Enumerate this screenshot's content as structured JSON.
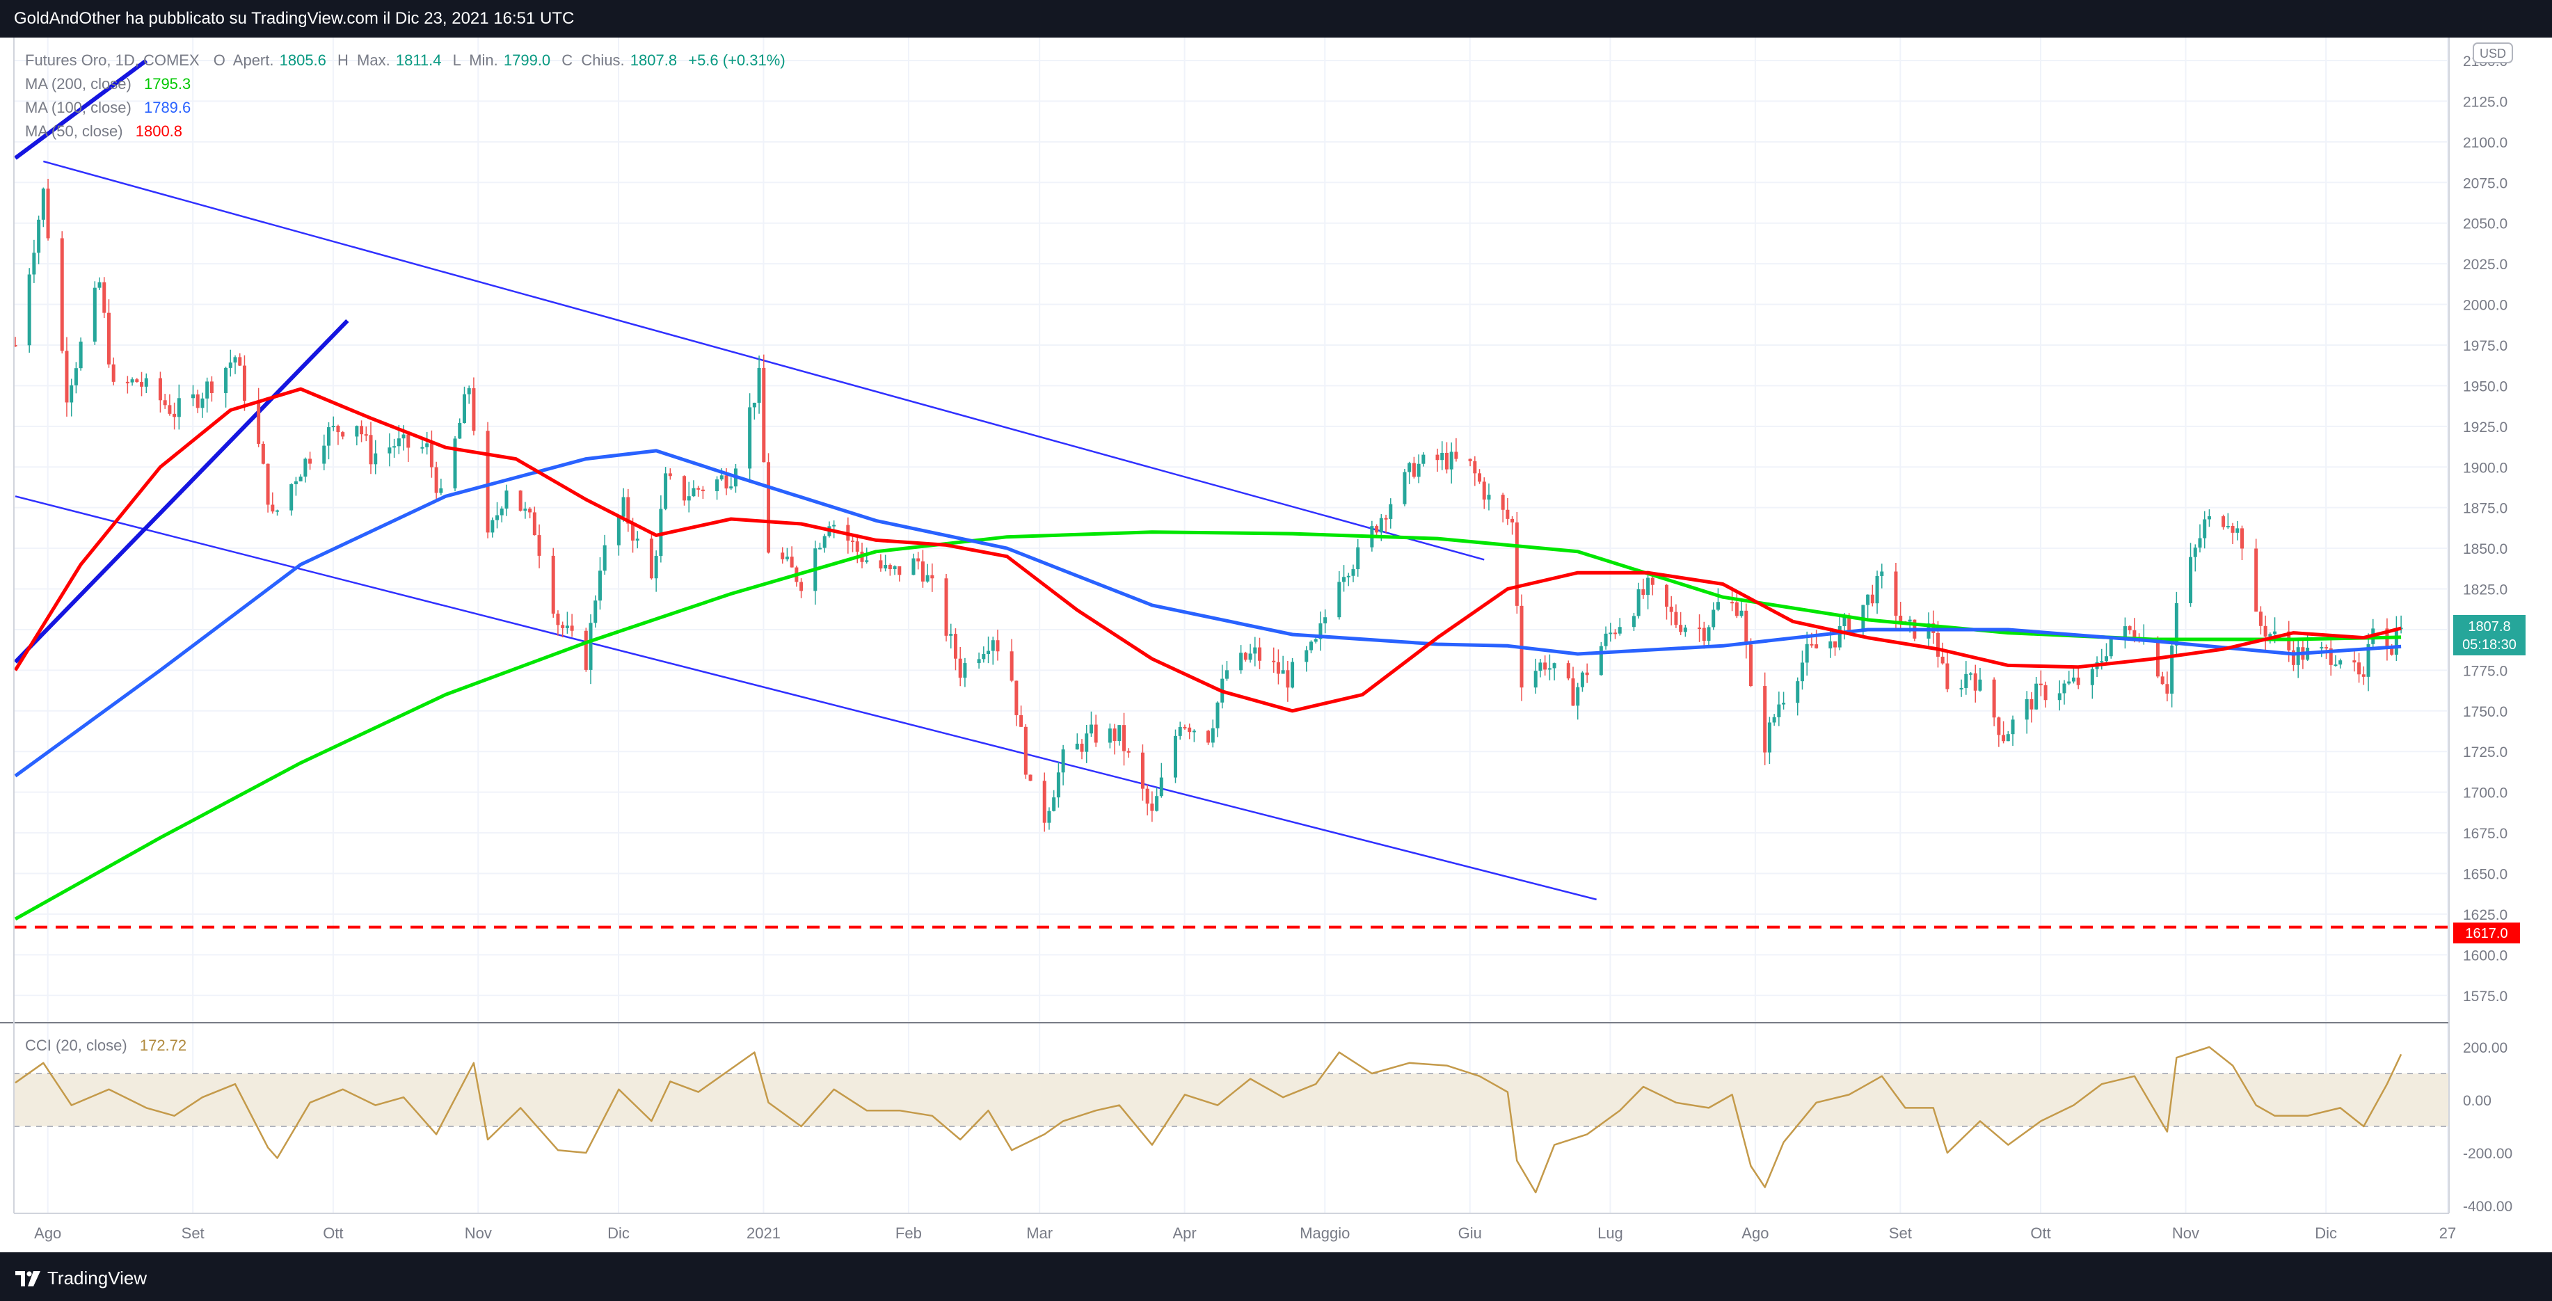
{
  "header": {
    "published_text": "GoldAndOther ha pubblicato su TradingView.com il Dic 23, 2021 16:51 UTC"
  },
  "footer": {
    "brand": "TradingView"
  },
  "legend": {
    "symbol": "Futures Oro, 1D, COMEX",
    "ohlc": [
      {
        "k": "O",
        "label": "Apert.",
        "value": "1805.6"
      },
      {
        "k": "H",
        "label": "Max.",
        "value": "1811.4"
      },
      {
        "k": "L",
        "label": "Min.",
        "value": "1799.0"
      },
      {
        "k": "C",
        "label": "Chius.",
        "value": "1807.8"
      }
    ],
    "change": "+5.6 (+0.31%)",
    "ma200": {
      "label": "MA (200, close)",
      "value": "1795.3",
      "color": "#00e600"
    },
    "ma100": {
      "label": "MA (100, close)",
      "value": "1789.6",
      "color": "#2962ff"
    },
    "ma50": {
      "label": "MA (50, close)",
      "value": "1800.8",
      "color": "#ff0000"
    },
    "cci": {
      "label": "CCI (20, close)",
      "value": "172.72",
      "color": "#c49a4a"
    }
  },
  "price_axis": {
    "currency": "USD",
    "ticks": [
      "2150.0",
      "2125.0",
      "2100.0",
      "2075.0",
      "2050.0",
      "2025.0",
      "2000.0",
      "1975.0",
      "1950.0",
      "1925.0",
      "1900.0",
      "1875.0",
      "1850.0",
      "1825.0",
      "1800.0",
      "1775.0",
      "1750.0",
      "1725.0",
      "1700.0",
      "1675.0",
      "1650.0",
      "1625.0",
      "1600.0",
      "1575.0"
    ],
    "last_price": "1807.8",
    "countdown": "05:18:30",
    "support_label": "1617.0"
  },
  "cci_axis": {
    "ticks": [
      "200.00",
      "0.00",
      "-200.00",
      "-400.00"
    ]
  },
  "time_axis": {
    "labels": [
      "Ago",
      "Set",
      "Ott",
      "Nov",
      "Dic",
      "2021",
      "Feb",
      "Mar",
      "Apr",
      "Maggio",
      "Giu",
      "Lug",
      "Ago",
      "Set",
      "Ott",
      "Nov",
      "Dic",
      "27"
    ]
  },
  "chart_data": {
    "type": "candlestick",
    "title": "Futures Oro, 1D, COMEX",
    "period": "Aug 2020 - Dec 2021",
    "ylim": [
      1575,
      2150
    ],
    "cci_ylim": [
      -400,
      260
    ],
    "cci_band": [
      -100,
      100
    ],
    "colors": {
      "up": "#26a69a",
      "down": "#ef5350",
      "ma200": "#00e600",
      "ma100": "#2962ff",
      "ma50": "#ff0000",
      "cci": "#c49a4a",
      "support": "#ff0000",
      "channel": "#3030ff"
    },
    "close_path": [
      [
        "2020-07-31",
        1975
      ],
      [
        "2020-08-06",
        2069
      ],
      [
        "2020-08-11",
        1946
      ],
      [
        "2020-08-18",
        2013
      ],
      [
        "2020-08-21",
        1947
      ],
      [
        "2020-08-26",
        1953
      ],
      [
        "2020-09-03",
        1934
      ],
      [
        "2020-09-08",
        1943
      ],
      [
        "2020-09-16",
        1968
      ],
      [
        "2020-09-21",
        1912
      ],
      [
        "2020-09-24",
        1868
      ],
      [
        "2020-09-29",
        1895
      ],
      [
        "2020-10-05",
        1920
      ],
      [
        "2020-10-12",
        1928
      ],
      [
        "2020-10-15",
        1907
      ],
      [
        "2020-10-20",
        1914
      ],
      [
        "2020-10-27",
        1911
      ],
      [
        "2020-10-30",
        1880
      ],
      [
        "2020-11-05",
        1950
      ],
      [
        "2020-11-09",
        1854
      ],
      [
        "2020-11-13",
        1889
      ],
      [
        "2020-11-19",
        1862
      ],
      [
        "2020-11-24",
        1805
      ],
      [
        "2020-11-30",
        1781
      ],
      [
        "2020-12-03",
        1841
      ],
      [
        "2020-12-08",
        1875
      ],
      [
        "2020-12-14",
        1830
      ],
      [
        "2020-12-17",
        1891
      ],
      [
        "2020-12-21",
        1883
      ],
      [
        "2020-12-31",
        1895
      ],
      [
        "2021-01-06",
        1954
      ],
      [
        "2021-01-08",
        1850
      ],
      [
        "2021-01-15",
        1830
      ],
      [
        "2021-01-21",
        1869
      ],
      [
        "2021-01-28",
        1845
      ],
      [
        "2021-02-03",
        1834
      ],
      [
        "2021-02-09",
        1842
      ],
      [
        "2021-02-12",
        1825
      ],
      [
        "2021-02-18",
        1775
      ],
      [
        "2021-02-25",
        1797
      ],
      [
        "2021-03-01",
        1770
      ],
      [
        "2021-03-05",
        1700
      ],
      [
        "2021-03-08",
        1685
      ],
      [
        "2021-03-12",
        1720
      ],
      [
        "2021-03-18",
        1735
      ],
      [
        "2021-03-24",
        1735
      ],
      [
        "2021-03-31",
        1685
      ],
      [
        "2021-04-06",
        1745
      ],
      [
        "2021-04-12",
        1735
      ],
      [
        "2021-04-16",
        1775
      ],
      [
        "2021-04-22",
        1785
      ],
      [
        "2021-04-29",
        1770
      ],
      [
        "2021-05-05",
        1790
      ],
      [
        "2021-05-10",
        1835
      ],
      [
        "2021-05-14",
        1845
      ],
      [
        "2021-05-20",
        1875
      ],
      [
        "2021-05-26",
        1900
      ],
      [
        "2021-06-01",
        1905
      ],
      [
        "2021-06-07",
        1900
      ],
      [
        "2021-06-11",
        1880
      ],
      [
        "2021-06-16",
        1865
      ],
      [
        "2021-06-18",
        1770
      ],
      [
        "2021-06-23",
        1780
      ],
      [
        "2021-06-29",
        1760
      ],
      [
        "2021-07-05",
        1790
      ],
      [
        "2021-07-09",
        1805
      ],
      [
        "2021-07-15",
        1825
      ],
      [
        "2021-07-21",
        1805
      ],
      [
        "2021-07-27",
        1800
      ],
      [
        "2021-07-30",
        1815
      ],
      [
        "2021-08-04",
        1815
      ],
      [
        "2021-08-06",
        1760
      ],
      [
        "2021-08-09",
        1730
      ],
      [
        "2021-08-12",
        1755
      ],
      [
        "2021-08-18",
        1785
      ],
      [
        "2021-08-24",
        1795
      ],
      [
        "2021-08-30",
        1815
      ],
      [
        "2021-09-03",
        1830
      ],
      [
        "2021-09-08",
        1800
      ],
      [
        "2021-09-14",
        1800
      ],
      [
        "2021-09-17",
        1760
      ],
      [
        "2021-09-22",
        1775
      ],
      [
        "2021-09-29",
        1735
      ],
      [
        "2021-10-06",
        1760
      ],
      [
        "2021-10-12",
        1765
      ],
      [
        "2021-10-18",
        1770
      ],
      [
        "2021-10-22",
        1795
      ],
      [
        "2021-10-28",
        1800
      ],
      [
        "2021-11-03",
        1765
      ],
      [
        "2021-11-05",
        1815
      ],
      [
        "2021-11-11",
        1865
      ],
      [
        "2021-11-16",
        1870
      ],
      [
        "2021-11-19",
        1855
      ],
      [
        "2021-11-22",
        1805
      ],
      [
        "2021-11-30",
        1785
      ],
      [
        "2021-12-06",
        1785
      ],
      [
        "2021-12-10",
        1785
      ],
      [
        "2021-12-15",
        1765
      ],
      [
        "2021-12-17",
        1805
      ],
      [
        "2021-12-21",
        1790
      ],
      [
        "2021-12-23",
        1807.8
      ]
    ],
    "ma50": [
      [
        "2020-07-31",
        1775
      ],
      [
        "2020-08-14",
        1840
      ],
      [
        "2020-08-31",
        1900
      ],
      [
        "2020-09-15",
        1935
      ],
      [
        "2020-09-30",
        1948
      ],
      [
        "2020-10-15",
        1930
      ],
      [
        "2020-10-31",
        1912
      ],
      [
        "2020-11-15",
        1905
      ],
      [
        "2020-11-30",
        1880
      ],
      [
        "2020-12-15",
        1858
      ],
      [
        "2020-12-31",
        1868
      ],
      [
        "2021-01-15",
        1865
      ],
      [
        "2021-01-31",
        1855
      ],
      [
        "2021-02-15",
        1852
      ],
      [
        "2021-02-28",
        1845
      ],
      [
        "2021-03-15",
        1812
      ],
      [
        "2021-03-31",
        1782
      ],
      [
        "2021-04-15",
        1762
      ],
      [
        "2021-04-30",
        1750
      ],
      [
        "2021-05-15",
        1760
      ],
      [
        "2021-05-31",
        1795
      ],
      [
        "2021-06-15",
        1825
      ],
      [
        "2021-06-30",
        1835
      ],
      [
        "2021-07-15",
        1835
      ],
      [
        "2021-07-31",
        1828
      ],
      [
        "2021-08-15",
        1805
      ],
      [
        "2021-08-31",
        1795
      ],
      [
        "2021-09-15",
        1788
      ],
      [
        "2021-09-30",
        1778
      ],
      [
        "2021-10-15",
        1777
      ],
      [
        "2021-10-31",
        1782
      ],
      [
        "2021-11-15",
        1788
      ],
      [
        "2021-11-30",
        1798
      ],
      [
        "2021-12-15",
        1795
      ],
      [
        "2021-12-23",
        1800.8
      ]
    ],
    "ma100": [
      [
        "2020-07-31",
        1710
      ],
      [
        "2020-08-31",
        1775
      ],
      [
        "2020-09-30",
        1840
      ],
      [
        "2020-10-31",
        1882
      ],
      [
        "2020-11-30",
        1905
      ],
      [
        "2020-12-15",
        1910
      ],
      [
        "2020-12-31",
        1895
      ],
      [
        "2021-01-31",
        1867
      ],
      [
        "2021-02-28",
        1850
      ],
      [
        "2021-03-31",
        1815
      ],
      [
        "2021-04-30",
        1797
      ],
      [
        "2021-05-31",
        1791
      ],
      [
        "2021-06-15",
        1790
      ],
      [
        "2021-06-30",
        1785
      ],
      [
        "2021-07-31",
        1790
      ],
      [
        "2021-08-31",
        1800
      ],
      [
        "2021-09-30",
        1800
      ],
      [
        "2021-10-31",
        1793
      ],
      [
        "2021-11-30",
        1785
      ],
      [
        "2021-12-23",
        1789.6
      ]
    ],
    "ma200": [
      [
        "2020-07-31",
        1622
      ],
      [
        "2020-08-31",
        1672
      ],
      [
        "2020-09-30",
        1718
      ],
      [
        "2020-10-31",
        1760
      ],
      [
        "2020-11-30",
        1792
      ],
      [
        "2020-12-31",
        1822
      ],
      [
        "2021-01-31",
        1848
      ],
      [
        "2021-02-28",
        1857
      ],
      [
        "2021-03-31",
        1860
      ],
      [
        "2021-04-30",
        1859
      ],
      [
        "2021-05-31",
        1856
      ],
      [
        "2021-06-30",
        1848
      ],
      [
        "2021-07-31",
        1820
      ],
      [
        "2021-08-31",
        1806
      ],
      [
        "2021-09-30",
        1798
      ],
      [
        "2021-10-31",
        1794
      ],
      [
        "2021-11-30",
        1794
      ],
      [
        "2021-12-23",
        1795.3
      ]
    ],
    "cci": [
      [
        "2020-07-31",
        65
      ],
      [
        "2020-08-06",
        140
      ],
      [
        "2020-08-12",
        -20
      ],
      [
        "2020-08-20",
        40
      ],
      [
        "2020-08-28",
        -30
      ],
      [
        "2020-09-03",
        -60
      ],
      [
        "2020-09-09",
        10
      ],
      [
        "2020-09-16",
        60
      ],
      [
        "2020-09-23",
        -180
      ],
      [
        "2020-09-25",
        -220
      ],
      [
        "2020-10-02",
        -10
      ],
      [
        "2020-10-09",
        40
      ],
      [
        "2020-10-16",
        -20
      ],
      [
        "2020-10-22",
        10
      ],
      [
        "2020-10-29",
        -130
      ],
      [
        "2020-11-06",
        140
      ],
      [
        "2020-11-09",
        -150
      ],
      [
        "2020-11-16",
        -30
      ],
      [
        "2020-11-24",
        -190
      ],
      [
        "2020-11-30",
        -200
      ],
      [
        "2020-12-07",
        40
      ],
      [
        "2020-12-14",
        -80
      ],
      [
        "2020-12-18",
        70
      ],
      [
        "2020-12-24",
        30
      ],
      [
        "2021-01-05",
        180
      ],
      [
        "2021-01-08",
        -10
      ],
      [
        "2021-01-15",
        -100
      ],
      [
        "2021-01-22",
        40
      ],
      [
        "2021-01-29",
        -40
      ],
      [
        "2021-02-05",
        -40
      ],
      [
        "2021-02-12",
        -60
      ],
      [
        "2021-02-18",
        -150
      ],
      [
        "2021-02-24",
        -40
      ],
      [
        "2021-03-01",
        -190
      ],
      [
        "2021-03-08",
        -130
      ],
      [
        "2021-03-12",
        -80
      ],
      [
        "2021-03-19",
        -40
      ],
      [
        "2021-03-24",
        -20
      ],
      [
        "2021-03-31",
        -170
      ],
      [
        "2021-04-07",
        20
      ],
      [
        "2021-04-14",
        -20
      ],
      [
        "2021-04-21",
        80
      ],
      [
        "2021-04-28",
        10
      ],
      [
        "2021-05-05",
        60
      ],
      [
        "2021-05-10",
        180
      ],
      [
        "2021-05-17",
        100
      ],
      [
        "2021-05-25",
        140
      ],
      [
        "2021-06-02",
        130
      ],
      [
        "2021-06-09",
        90
      ],
      [
        "2021-06-15",
        30
      ],
      [
        "2021-06-17",
        -230
      ],
      [
        "2021-06-21",
        -350
      ],
      [
        "2021-06-25",
        -170
      ],
      [
        "2021-07-02",
        -130
      ],
      [
        "2021-07-09",
        -40
      ],
      [
        "2021-07-14",
        50
      ],
      [
        "2021-07-21",
        -10
      ],
      [
        "2021-07-28",
        -30
      ],
      [
        "2021-08-02",
        20
      ],
      [
        "2021-08-06",
        -250
      ],
      [
        "2021-08-09",
        -330
      ],
      [
        "2021-08-13",
        -160
      ],
      [
        "2021-08-20",
        -10
      ],
      [
        "2021-08-27",
        20
      ],
      [
        "2021-09-03",
        90
      ],
      [
        "2021-09-08",
        -30
      ],
      [
        "2021-09-14",
        -30
      ],
      [
        "2021-09-17",
        -200
      ],
      [
        "2021-09-24",
        -80
      ],
      [
        "2021-09-30",
        -170
      ],
      [
        "2021-10-07",
        -80
      ],
      [
        "2021-10-14",
        -20
      ],
      [
        "2021-10-20",
        60
      ],
      [
        "2021-10-27",
        90
      ],
      [
        "2021-11-03",
        -120
      ],
      [
        "2021-11-05",
        160
      ],
      [
        "2021-11-12",
        200
      ],
      [
        "2021-11-17",
        130
      ],
      [
        "2021-11-22",
        -20
      ],
      [
        "2021-11-26",
        -60
      ],
      [
        "2021-12-03",
        -60
      ],
      [
        "2021-12-10",
        -30
      ],
      [
        "2021-12-15",
        -100
      ],
      [
        "2021-12-20",
        60
      ],
      [
        "2021-12-23",
        172.72
      ]
    ],
    "support_level": 1617.0,
    "channel_upper": [
      [
        "2020-08-06",
        2088
      ],
      [
        "2021-06-10",
        1843
      ]
    ],
    "channel_lower": [
      [
        "2020-07-31",
        1882
      ],
      [
        "2021-07-04",
        1634
      ]
    ],
    "trendline_blue": [
      [
        "2020-07-31",
        1780
      ],
      [
        "2020-10-10",
        1990
      ]
    ],
    "trendline_blue2": [
      [
        "2020-07-31",
        2090
      ],
      [
        "2020-08-28",
        2150
      ]
    ]
  }
}
